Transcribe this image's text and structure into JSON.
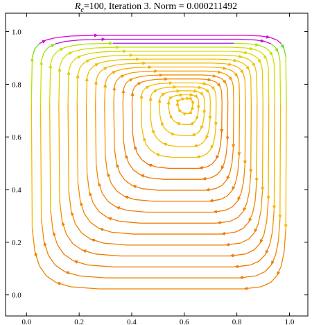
{
  "title": {
    "re_symbol": "R",
    "re_sub": "e",
    "re_rest": "=100, Iteration 3. Norm = 0.000211492"
  },
  "chart_data": {
    "type": "streamplot",
    "title": "Re=100, Iteration 3. Norm = 0.000211492",
    "xlim": [
      -0.08,
      1.07
    ],
    "ylim": [
      -0.08,
      1.07
    ],
    "xticks": [
      0.0,
      0.2,
      0.4,
      0.6,
      0.8,
      1.0
    ],
    "yticks": [
      0.0,
      0.2,
      0.4,
      0.6,
      0.8,
      1.0
    ],
    "xtick_labels": [
      "0.0",
      "0.2",
      "0.4",
      "0.6",
      "0.8",
      "1.0"
    ],
    "ytick_labels": [
      "0.0",
      "0.2",
      "0.4",
      "0.6",
      "0.8",
      "1.0"
    ],
    "vortex_center": [
      0.61,
      0.73
    ],
    "colors": {
      "slow": "#e60000",
      "mid": "#f5b000",
      "fast": "#1040ff",
      "axis": "#000000"
    }
  }
}
